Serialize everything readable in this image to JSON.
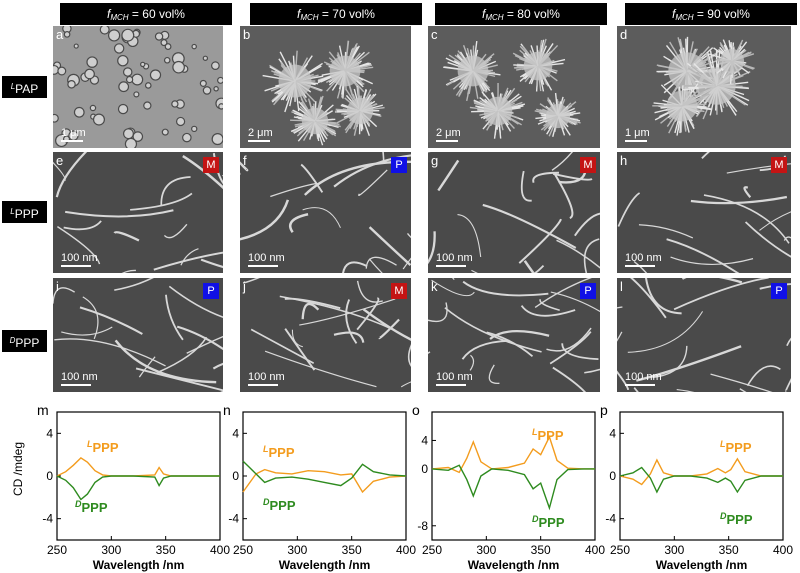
{
  "colors": {
    "orange": "#f39c1e",
    "green": "#2e8b1f",
    "badge_m": "#c41414",
    "badge_p": "#1010e6"
  },
  "columns": [
    {
      "label": "= 60 vol%"
    },
    {
      "label": "= 70 vol%"
    },
    {
      "label": "= 80 vol%"
    },
    {
      "label": "= 90 vol%"
    }
  ],
  "fmch": {
    "f": "f",
    "sub": "MCH"
  },
  "rows": [
    {
      "sup": "L",
      "text": "PAP"
    },
    {
      "sup": "L",
      "text": "PPP"
    },
    {
      "sup": "D",
      "text": "PPP"
    }
  ],
  "panels": [
    {
      "letter": "a",
      "scale": "1 μm",
      "badge": ""
    },
    {
      "letter": "b",
      "scale": "2 μm",
      "badge": ""
    },
    {
      "letter": "c",
      "scale": "2 μm",
      "badge": ""
    },
    {
      "letter": "d",
      "scale": "1 μm",
      "badge": ""
    },
    {
      "letter": "e",
      "scale": "100 nm",
      "badge": "M"
    },
    {
      "letter": "f",
      "scale": "100 nm",
      "badge": "P"
    },
    {
      "letter": "g",
      "scale": "100 nm",
      "badge": "M"
    },
    {
      "letter": "h",
      "scale": "100 nm",
      "badge": "M"
    },
    {
      "letter": "i",
      "scale": "100 nm",
      "badge": "P"
    },
    {
      "letter": "j",
      "scale": "100 nm",
      "badge": "M"
    },
    {
      "letter": "k",
      "scale": "100 nm",
      "badge": "P"
    },
    {
      "letter": "l",
      "scale": "100 nm",
      "badge": "P"
    }
  ],
  "ylabel": "CD /mdeg",
  "chart_data": [
    {
      "type": "line",
      "letter": "m",
      "xlabel": "Wavelength /nm",
      "ylabel": "CD /mdeg",
      "xlim": [
        250,
        400
      ],
      "ylim": [
        -6,
        6
      ],
      "xticks": [
        "250",
        "300",
        "350",
        "400"
      ],
      "yticks": [
        "4",
        "0",
        "-4"
      ],
      "annotations": [
        {
          "sup": "L",
          "text": "PPP"
        },
        {
          "sup": "D",
          "text": "PPP"
        }
      ],
      "series": [
        {
          "name": "LPPP",
          "x": [
            250,
            258,
            265,
            272,
            278,
            285,
            292,
            300,
            320,
            340,
            344,
            348,
            355,
            370,
            385,
            400
          ],
          "y": [
            0,
            0.4,
            1.0,
            1.7,
            1.3,
            0.5,
            0.1,
            0,
            0,
            0.1,
            0.8,
            0.2,
            0,
            0,
            0,
            0
          ]
        },
        {
          "name": "DPPP",
          "x": [
            250,
            258,
            265,
            272,
            278,
            285,
            292,
            300,
            320,
            340,
            344,
            348,
            355,
            370,
            385,
            400
          ],
          "y": [
            0,
            -0.4,
            -1.1,
            -2.2,
            -1.7,
            -0.6,
            -0.1,
            0,
            0,
            -0.1,
            -0.9,
            -0.2,
            0,
            0,
            0,
            0
          ]
        }
      ]
    },
    {
      "type": "line",
      "letter": "n",
      "xlabel": "Wavelength /nm",
      "ylabel": "",
      "xlim": [
        250,
        400
      ],
      "ylim": [
        -6,
        6
      ],
      "xticks": [
        "250",
        "300",
        "350",
        "400"
      ],
      "yticks": [
        "4",
        "0",
        "-4"
      ],
      "annotations": [
        {
          "sup": "L",
          "text": "PPP"
        },
        {
          "sup": "D",
          "text": "PPP"
        }
      ],
      "series": [
        {
          "name": "LPPP",
          "x": [
            250,
            255,
            262,
            270,
            280,
            295,
            310,
            325,
            340,
            350,
            360,
            370,
            385,
            400
          ],
          "y": [
            -1.5,
            -0.8,
            0.2,
            0.6,
            0.3,
            0.2,
            0.5,
            0.4,
            0.1,
            0.2,
            -1.5,
            -0.5,
            -0.1,
            0
          ]
        },
        {
          "name": "DPPP",
          "x": [
            250,
            255,
            262,
            270,
            280,
            295,
            310,
            325,
            340,
            350,
            360,
            370,
            385,
            400
          ],
          "y": [
            1.4,
            0.9,
            0.2,
            -0.6,
            -0.2,
            -0.1,
            -0.3,
            -0.6,
            -0.9,
            -0.2,
            1.1,
            0.4,
            0.1,
            0
          ]
        }
      ]
    },
    {
      "type": "line",
      "letter": "o",
      "xlabel": "Wavelength /nm",
      "ylabel": "",
      "xlim": [
        250,
        400
      ],
      "ylim": [
        -10,
        8
      ],
      "xticks": [
        "250",
        "300",
        "350",
        "400"
      ],
      "yticks": [
        "4",
        "0",
        "-8"
      ],
      "annotations": [
        {
          "sup": "L",
          "text": "PPP"
        },
        {
          "sup": "D",
          "text": "PPP"
        }
      ],
      "series": [
        {
          "name": "LPPP",
          "x": [
            250,
            265,
            275,
            282,
            288,
            295,
            305,
            320,
            335,
            343,
            350,
            358,
            365,
            375,
            390,
            400
          ],
          "y": [
            0,
            0.2,
            -0.5,
            1.5,
            3.8,
            1.0,
            0,
            0.2,
            0.8,
            2.8,
            2.0,
            4.5,
            1.2,
            0.1,
            0,
            0
          ]
        },
        {
          "name": "DPPP",
          "x": [
            250,
            265,
            275,
            282,
            288,
            295,
            305,
            320,
            335,
            343,
            350,
            358,
            365,
            375,
            390,
            400
          ],
          "y": [
            0,
            -0.2,
            0.5,
            -1.5,
            -3.8,
            -1.0,
            0,
            -0.2,
            -0.8,
            -2.8,
            -2.0,
            -5.5,
            -1.5,
            -0.1,
            0,
            0
          ]
        }
      ]
    },
    {
      "type": "line",
      "letter": "p",
      "xlabel": "Wavelength /nm",
      "ylabel": "",
      "xlim": [
        250,
        400
      ],
      "ylim": [
        -6,
        6
      ],
      "xticks": [
        "250",
        "300",
        "350",
        "400"
      ],
      "yticks": [
        "4",
        "0",
        "-4"
      ],
      "annotations": [
        {
          "sup": "L",
          "text": "PPP"
        },
        {
          "sup": "D",
          "text": "PPP"
        }
      ],
      "series": [
        {
          "name": "LPPP",
          "x": [
            250,
            262,
            270,
            278,
            284,
            290,
            300,
            315,
            330,
            340,
            347,
            352,
            358,
            365,
            380,
            400
          ],
          "y": [
            0,
            -0.3,
            -0.8,
            0.2,
            1.5,
            0.3,
            0,
            0,
            0.2,
            0.7,
            0.3,
            0.6,
            1.6,
            0.4,
            0,
            0
          ]
        },
        {
          "name": "DPPP",
          "x": [
            250,
            262,
            270,
            278,
            284,
            290,
            300,
            315,
            330,
            340,
            347,
            352,
            358,
            365,
            380,
            400
          ],
          "y": [
            0,
            0.3,
            0.8,
            -0.2,
            -1.5,
            -0.3,
            0,
            0,
            -0.2,
            -0.6,
            -0.2,
            -0.5,
            -1.5,
            -0.4,
            0,
            0
          ]
        }
      ]
    }
  ]
}
